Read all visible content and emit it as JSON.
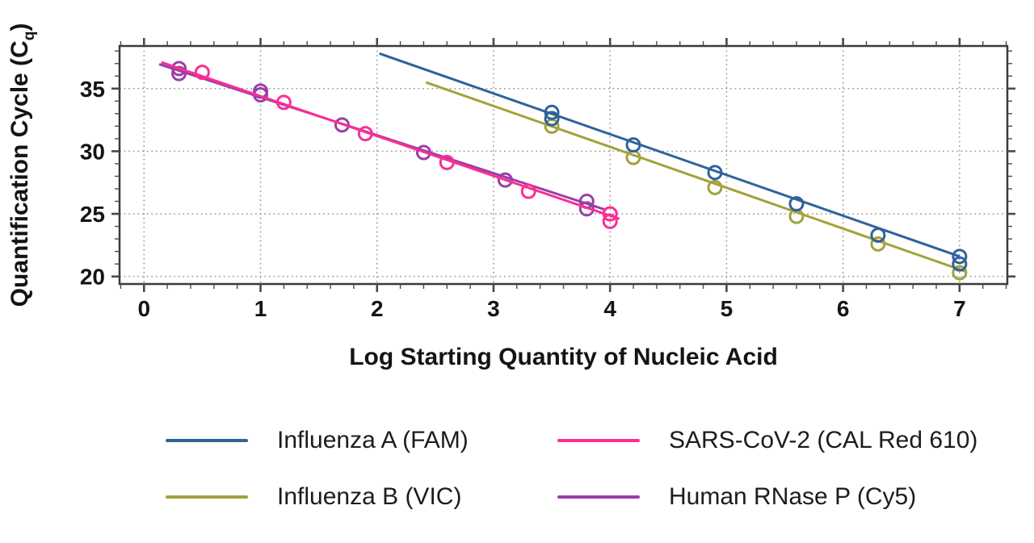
{
  "chart_data": {
    "type": "scatter",
    "xlabel": "Log Starting Quantity of Nucleic Acid",
    "ylabel": "Quantification Cycle (Cq)",
    "ylabel_parts": {
      "pre": "Quantification Cycle (C",
      "sub": "q",
      "post": ")"
    },
    "xlim": [
      -0.21,
      7.41
    ],
    "ylim": [
      19.4,
      38.4
    ],
    "x_major_ticks": [
      0,
      1,
      2,
      3,
      4,
      5,
      6,
      7
    ],
    "x_minor_step": 0.2,
    "y_major_ticks": [
      20,
      25,
      30,
      35
    ],
    "y_minor_step": 1,
    "grid": "dotted",
    "legend_position": "bottom",
    "series": [
      {
        "id": "influenza-b",
        "name": "Influenza B (VIC)",
        "color": "#a3a23d",
        "points": [
          [
            3.5,
            32.0
          ],
          [
            4.2,
            29.5
          ],
          [
            4.9,
            27.1
          ],
          [
            5.6,
            24.8
          ],
          [
            6.3,
            22.6
          ],
          [
            7.0,
            20.3
          ]
        ],
        "trend": [
          [
            2.42,
            35.5
          ],
          [
            7.05,
            20.4
          ]
        ]
      },
      {
        "id": "influenza-a",
        "name": "Influenza A (FAM)",
        "color": "#2e6399",
        "points": [
          [
            3.5,
            33.1
          ],
          [
            3.5,
            32.6
          ],
          [
            4.2,
            30.5
          ],
          [
            4.9,
            28.3
          ],
          [
            5.6,
            25.8
          ],
          [
            6.3,
            23.3
          ],
          [
            7.0,
            21.6
          ],
          [
            7.0,
            21.0
          ]
        ],
        "trend": [
          [
            2.02,
            37.8
          ],
          [
            7.0,
            21.6
          ]
        ]
      },
      {
        "id": "human-rnase-p",
        "name": "Human RNase P (Cy5)",
        "color": "#9a3fa5",
        "points": [
          [
            0.3,
            36.6
          ],
          [
            0.3,
            36.2
          ],
          [
            1.0,
            34.8
          ],
          [
            1.0,
            34.5
          ],
          [
            1.7,
            32.1
          ],
          [
            2.4,
            29.9
          ],
          [
            3.1,
            27.7
          ],
          [
            3.8,
            26.0
          ],
          [
            3.8,
            25.4
          ]
        ],
        "trend": [
          [
            0.13,
            36.95
          ],
          [
            3.97,
            25.3
          ]
        ]
      },
      {
        "id": "sars-cov-2",
        "name": "SARS-CoV-2 (CAL Red 610)",
        "color": "#fb2e96",
        "points": [
          [
            0.5,
            36.3
          ],
          [
            1.2,
            33.9
          ],
          [
            1.9,
            31.4
          ],
          [
            2.6,
            29.1
          ],
          [
            3.3,
            26.8
          ],
          [
            4.0,
            25.0
          ],
          [
            4.0,
            24.4
          ]
        ],
        "trend": [
          [
            0.15,
            37.1
          ],
          [
            4.08,
            24.6
          ]
        ]
      }
    ]
  },
  "legend": {
    "items": [
      {
        "label": "Influenza A (FAM)",
        "color": "#2e6399"
      },
      {
        "label": "SARS-CoV-2 (CAL Red 610)",
        "color": "#fb2e96"
      },
      {
        "label": "Influenza B (VIC)",
        "color": "#a3a23d"
      },
      {
        "label": "Human RNase P (Cy5)",
        "color": "#9a3fa5"
      }
    ]
  }
}
